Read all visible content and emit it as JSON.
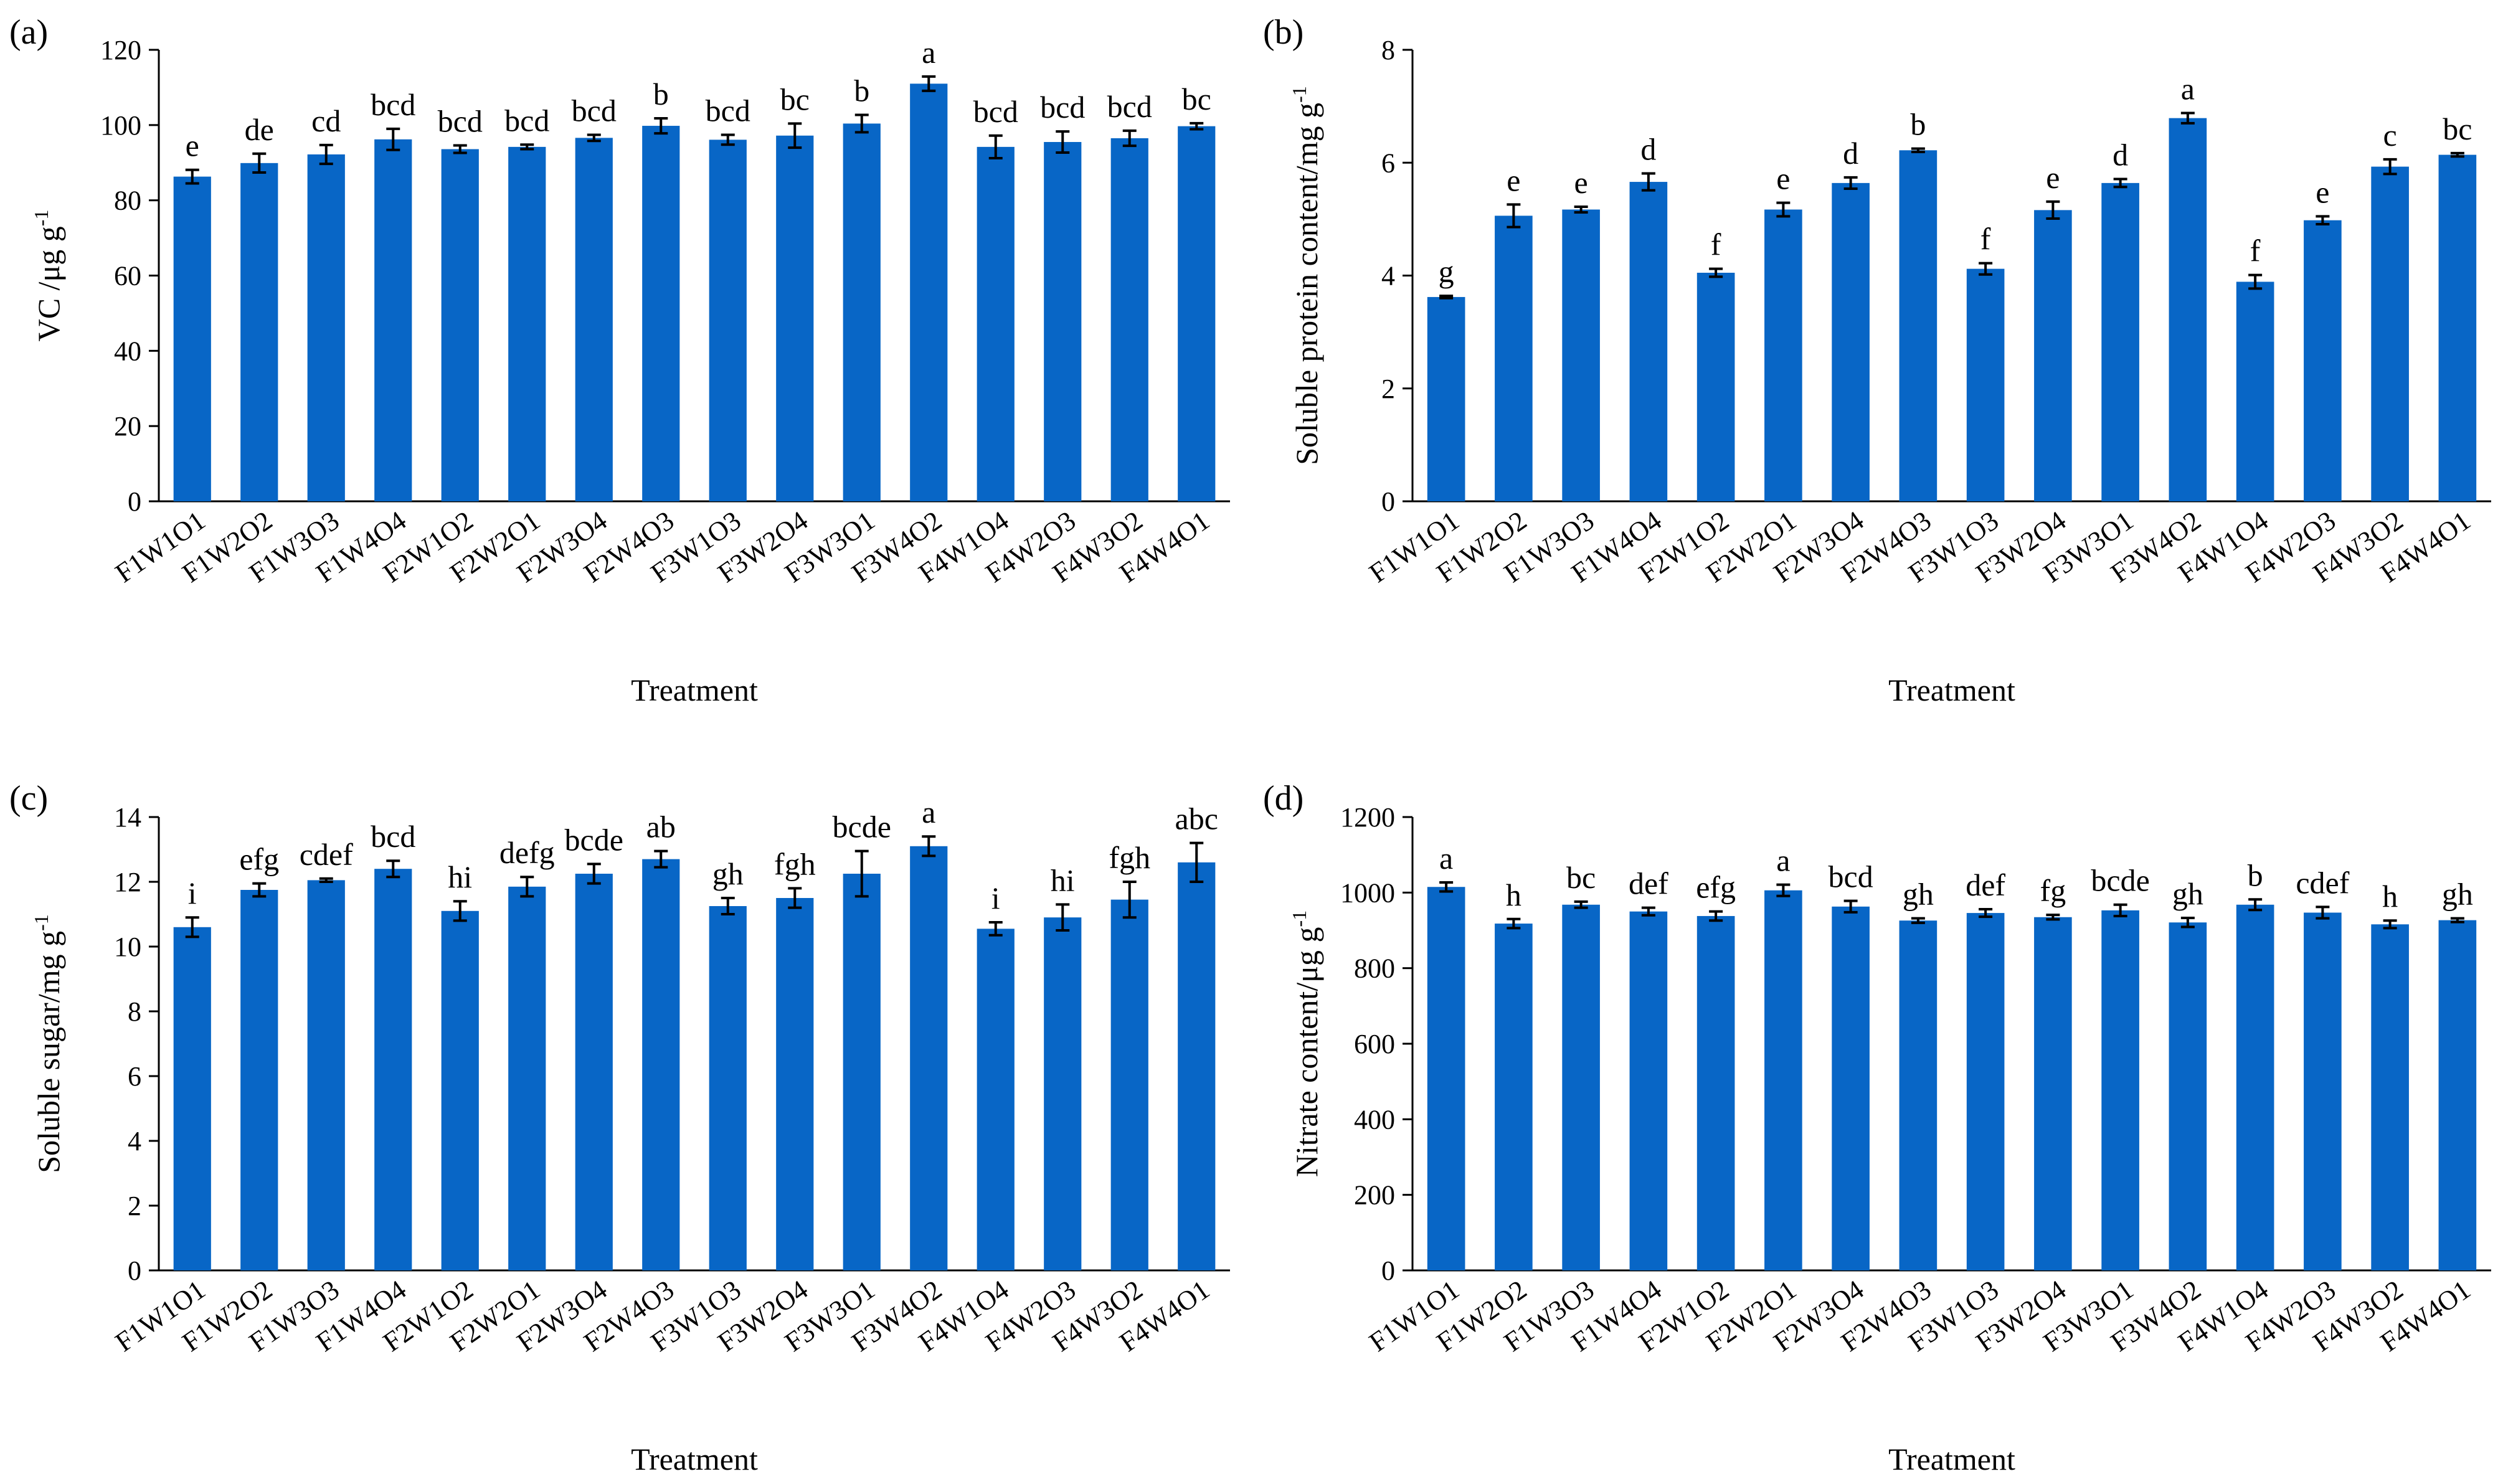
{
  "bar_color": "#0866c6",
  "error_color": "#000000",
  "chart_data": [
    {
      "type": "bar",
      "panel_label": "(a)",
      "ylabel": "VC /μg g",
      "ylabel_sup": "-1",
      "xlabel": "Treatment",
      "ylim": [
        0,
        120
      ],
      "yticks": [
        0,
        20,
        40,
        60,
        80,
        100,
        120
      ],
      "categories": [
        "F1W1O1",
        "F1W2O2",
        "F1W3O3",
        "F1W4O4",
        "F2W1O2",
        "F2W2O1",
        "F2W3O4",
        "F2W4O3",
        "F3W1O3",
        "F3W2O4",
        "F3W3O1",
        "F3W4O2",
        "F4W1O4",
        "F4W2O3",
        "F4W3O2",
        "F4W4O1"
      ],
      "values": [
        86.3,
        89.9,
        92.2,
        96.2,
        93.6,
        94.2,
        96.6,
        99.8,
        96.1,
        97.2,
        100.4,
        111.0,
        94.2,
        95.5,
        96.5,
        99.7
      ],
      "errors": [
        1.8,
        2.5,
        2.5,
        2.8,
        1.0,
        0.6,
        0.8,
        2.0,
        1.3,
        3.2,
        2.3,
        1.9,
        3.0,
        2.8,
        2.0,
        0.8
      ],
      "letters": [
        "e",
        "de",
        "cd",
        "bcd",
        "bcd",
        "bcd",
        "bcd",
        "b",
        "bcd",
        "bc",
        "b",
        "a",
        "bcd",
        "bcd",
        "bcd",
        "bc"
      ]
    },
    {
      "type": "bar",
      "panel_label": "(b)",
      "ylabel": "Soluble protein content/mg g",
      "ylabel_sup": "-1",
      "xlabel": "Treatment",
      "ylim": [
        0,
        8
      ],
      "yticks": [
        0,
        2,
        4,
        6,
        8
      ],
      "categories": [
        "F1W1O1",
        "F1W2O2",
        "F1W3O3",
        "F1W4O4",
        "F2W1O2",
        "F2W2O1",
        "F2W3O4",
        "F2W4O3",
        "F3W1O3",
        "F3W2O4",
        "F3W3O1",
        "F3W4O2",
        "F4W1O4",
        "F4W2O3",
        "F4W3O2",
        "F4W4O1"
      ],
      "values": [
        3.62,
        5.06,
        5.17,
        5.66,
        4.05,
        5.17,
        5.64,
        6.22,
        4.12,
        5.16,
        5.64,
        6.79,
        3.89,
        4.98,
        5.93,
        6.14
      ],
      "errors": [
        0.02,
        0.2,
        0.05,
        0.15,
        0.07,
        0.12,
        0.1,
        0.03,
        0.1,
        0.15,
        0.07,
        0.09,
        0.12,
        0.07,
        0.13,
        0.03
      ],
      "letters": [
        "g",
        "e",
        "e",
        "d",
        "f",
        "e",
        "d",
        "b",
        "f",
        "e",
        "d",
        "a",
        "f",
        "e",
        "c",
        "bc"
      ]
    },
    {
      "type": "bar",
      "panel_label": "(c)",
      "ylabel": "Soluble sugar/mg g",
      "ylabel_sup": "-1",
      "xlabel": "Treatment",
      "ylim": [
        0,
        14
      ],
      "yticks": [
        0,
        2,
        4,
        6,
        8,
        10,
        12,
        14
      ],
      "categories": [
        "F1W1O1",
        "F1W2O2",
        "F1W3O3",
        "F1W4O4",
        "F2W1O2",
        "F2W2O1",
        "F2W3O4",
        "F2W4O3",
        "F3W1O3",
        "F3W2O4",
        "F3W3O1",
        "F3W4O2",
        "F4W1O4",
        "F4W2O3",
        "F4W3O2",
        "F4W4O1"
      ],
      "values": [
        10.6,
        11.75,
        12.05,
        12.4,
        11.1,
        11.85,
        12.25,
        12.7,
        11.25,
        11.5,
        12.25,
        13.1,
        10.55,
        10.9,
        11.45,
        12.6
      ],
      "errors": [
        0.3,
        0.2,
        0.05,
        0.25,
        0.3,
        0.3,
        0.3,
        0.25,
        0.25,
        0.3,
        0.7,
        0.3,
        0.2,
        0.4,
        0.55,
        0.6
      ],
      "letters": [
        "i",
        "efg",
        "cdef",
        "bcd",
        "hi",
        "defg",
        "bcde",
        "ab",
        "gh",
        "fgh",
        "bcde",
        "a",
        "i",
        "hi",
        "fgh",
        "abc"
      ]
    },
    {
      "type": "bar",
      "panel_label": "(d)",
      "ylabel": "Nitrate content/μg g",
      "ylabel_sup": "-1",
      "xlabel": "Treatment",
      "ylim": [
        0,
        1200
      ],
      "yticks": [
        0,
        200,
        400,
        600,
        800,
        1000,
        1200
      ],
      "categories": [
        "F1W1O1",
        "F1W2O2",
        "F1W3O3",
        "F1W4O4",
        "F2W1O2",
        "F2W2O1",
        "F2W3O4",
        "F2W4O3",
        "F3W1O3",
        "F3W2O4",
        "F3W3O1",
        "F3W4O2",
        "F4W1O4",
        "F4W2O3",
        "F4W3O2",
        "F4W4O1"
      ],
      "values": [
        1015,
        918,
        968,
        950,
        938,
        1006,
        963,
        926,
        946,
        935,
        953,
        921,
        968,
        947,
        916,
        927
      ],
      "errors": [
        12,
        12,
        8,
        10,
        12,
        15,
        15,
        6,
        10,
        6,
        15,
        12,
        14,
        15,
        10,
        5
      ],
      "letters": [
        "a",
        "h",
        "bc",
        "def",
        "efg",
        "a",
        "bcd",
        "gh",
        "def",
        "fg",
        "bcde",
        "gh",
        "b",
        "cdef",
        "h",
        "gh"
      ]
    }
  ]
}
